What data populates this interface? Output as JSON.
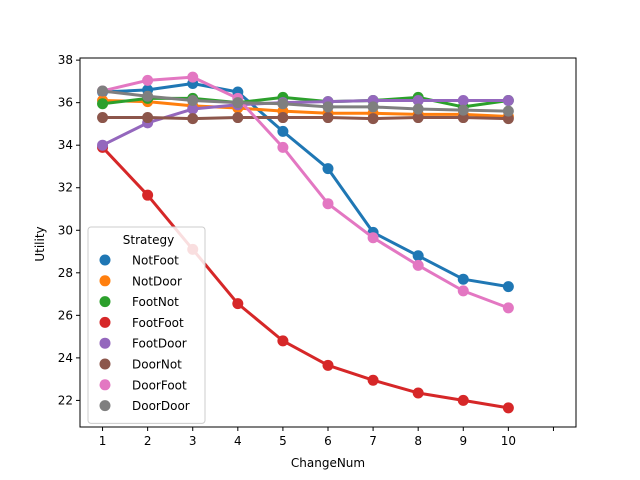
{
  "chart_data": {
    "type": "line",
    "title": "",
    "xlabel": "ChangeNum",
    "ylabel": "Utility",
    "categories": [
      "1",
      "2",
      "3",
      "4",
      "5",
      "6",
      "7",
      "8",
      "9",
      "10"
    ],
    "x_slots": 11,
    "ylim": [
      20.75,
      38.1
    ],
    "yticks": [
      22,
      24,
      26,
      28,
      30,
      32,
      34,
      36,
      38
    ],
    "grid": false,
    "legend": {
      "title": "Strategy",
      "placement": "lower-left"
    },
    "series": [
      {
        "name": "NotFoot",
        "color": "#1f77b4",
        "values": [
          36.5,
          36.6,
          36.9,
          36.5,
          34.65,
          32.9,
          29.9,
          28.8,
          27.7,
          27.35
        ]
      },
      {
        "name": "NotDoor",
        "color": "#ff7f0e",
        "values": [
          36.1,
          36.05,
          35.85,
          35.75,
          35.6,
          35.5,
          35.5,
          35.45,
          35.45,
          35.35
        ]
      },
      {
        "name": "FootNot",
        "color": "#2ca02c",
        "values": [
          35.95,
          36.2,
          36.2,
          36.0,
          36.25,
          36.05,
          36.1,
          36.25,
          35.8,
          36.1
        ]
      },
      {
        "name": "FootFoot",
        "color": "#d62728",
        "values": [
          33.9,
          31.65,
          29.1,
          26.55,
          24.8,
          23.65,
          22.95,
          22.35,
          22.0,
          21.65
        ]
      },
      {
        "name": "FootDoor",
        "color": "#9467bd",
        "values": [
          34.0,
          35.05,
          35.7,
          35.9,
          36.0,
          36.05,
          36.1,
          36.1,
          36.1,
          36.1
        ]
      },
      {
        "name": "DoorNot",
        "color": "#8c564b",
        "values": [
          35.3,
          35.3,
          35.25,
          35.3,
          35.3,
          35.3,
          35.25,
          35.3,
          35.3,
          35.25
        ]
      },
      {
        "name": "DoorFoot",
        "color": "#e377c2",
        "values": [
          36.55,
          37.05,
          37.2,
          36.2,
          33.9,
          31.25,
          29.65,
          28.35,
          27.15,
          26.35
        ]
      },
      {
        "name": "DoorDoor",
        "color": "#7f7f7f",
        "values": [
          36.55,
          36.3,
          36.1,
          36.0,
          35.95,
          35.8,
          35.8,
          35.7,
          35.65,
          35.6
        ]
      }
    ]
  }
}
